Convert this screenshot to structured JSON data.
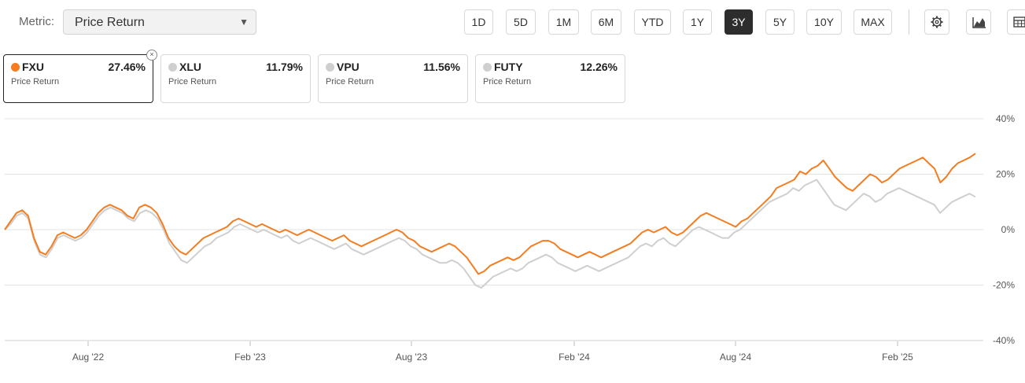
{
  "toolbar": {
    "metric_label": "Metric:",
    "metric_value": "Price Return",
    "periods": [
      "1D",
      "5D",
      "1M",
      "6M",
      "YTD",
      "1Y",
      "3Y",
      "5Y",
      "10Y",
      "MAX"
    ],
    "active_period": "3Y",
    "icons": [
      "gear-icon",
      "mountain-chart-icon",
      "table-icon"
    ]
  },
  "cards": [
    {
      "ticker": "FXU",
      "value": "27.46%",
      "metric": "Price Return",
      "color": "#f57c1f",
      "active": true
    },
    {
      "ticker": "XLU",
      "value": "11.79%",
      "metric": "Price Return",
      "color": "#cfcfcf",
      "active": false
    },
    {
      "ticker": "VPU",
      "value": "11.56%",
      "metric": "Price Return",
      "color": "#cfcfcf",
      "active": false
    },
    {
      "ticker": "FUTY",
      "value": "12.26%",
      "metric": "Price Return",
      "color": "#cfcfcf",
      "active": false
    }
  ],
  "chart_data": {
    "type": "line",
    "y_ticks": [
      "40%",
      "20%",
      "0%",
      "-20%",
      "-40%"
    ],
    "ylim": [
      -40,
      40
    ],
    "x_ticks": [
      "Aug '22",
      "Feb '23",
      "Aug '23",
      "Feb '24",
      "Aug '24",
      "Feb '25"
    ],
    "grid": true,
    "series": [
      {
        "name": "FXU",
        "color": "#f57c1f",
        "values": [
          0,
          3,
          6,
          7,
          5,
          -3,
          -8,
          -9,
          -6,
          -2,
          -1,
          -2,
          -3,
          -2,
          0,
          3,
          6,
          8,
          9,
          8,
          7,
          5,
          4,
          8,
          9,
          8,
          6,
          2,
          -3,
          -6,
          -8,
          -9,
          -7,
          -5,
          -3,
          -2,
          -1,
          0,
          1,
          3,
          4,
          3,
          2,
          1,
          2,
          1,
          0,
          -1,
          0,
          -1,
          -2,
          -1,
          0,
          -1,
          -2,
          -3,
          -4,
          -3,
          -2,
          -4,
          -5,
          -6,
          -5,
          -4,
          -3,
          -2,
          -1,
          0,
          -1,
          -3,
          -4,
          -6,
          -7,
          -8,
          -7,
          -6,
          -5,
          -6,
          -8,
          -10,
          -13,
          -16,
          -15,
          -13,
          -12,
          -11,
          -10,
          -11,
          -10,
          -8,
          -6,
          -5,
          -4,
          -4,
          -5,
          -7,
          -8,
          -9,
          -10,
          -9,
          -8,
          -9,
          -10,
          -9,
          -8,
          -7,
          -6,
          -5,
          -3,
          -1,
          0,
          -1,
          0,
          1,
          -1,
          -2,
          -1,
          1,
          3,
          5,
          6,
          5,
          4,
          3,
          2,
          1,
          3,
          4,
          6,
          8,
          10,
          12,
          15,
          16,
          17,
          18,
          21,
          20,
          22,
          23,
          25,
          22,
          19,
          17,
          15,
          14,
          16,
          18,
          20,
          19,
          17,
          18,
          20,
          22,
          23,
          24,
          25,
          26,
          24,
          22,
          17,
          19,
          22,
          24,
          25,
          26,
          27.46
        ]
      },
      {
        "name": "XLU",
        "color": "#cfcfcf",
        "values": [
          0,
          2,
          5,
          6,
          4,
          -4,
          -9,
          -10,
          -7,
          -3,
          -2,
          -3,
          -4,
          -3,
          -1,
          2,
          5,
          7,
          8,
          7,
          6,
          4,
          3,
          6,
          7,
          6,
          4,
          0,
          -5,
          -8,
          -11,
          -12,
          -10,
          -8,
          -6,
          -5,
          -3,
          -2,
          -1,
          1,
          2,
          1,
          0,
          -1,
          0,
          -1,
          -2,
          -3,
          -2,
          -4,
          -5,
          -4,
          -3,
          -4,
          -5,
          -6,
          -7,
          -6,
          -5,
          -7,
          -8,
          -9,
          -8,
          -7,
          -6,
          -5,
          -4,
          -3,
          -4,
          -6,
          -7,
          -9,
          -10,
          -11,
          -12,
          -12,
          -11,
          -12,
          -14,
          -17,
          -20,
          -21,
          -19,
          -17,
          -16,
          -15,
          -14,
          -15,
          -14,
          -12,
          -11,
          -10,
          -9,
          -10,
          -12,
          -13,
          -14,
          -15,
          -14,
          -13,
          -14,
          -15,
          -14,
          -13,
          -12,
          -11,
          -10,
          -8,
          -6,
          -5,
          -6,
          -4,
          -3,
          -5,
          -6,
          -4,
          -2,
          0,
          1,
          0,
          -1,
          -2,
          -3,
          -3,
          -1,
          0,
          2,
          4,
          6,
          8,
          10,
          11,
          12,
          13,
          15,
          14,
          16,
          17,
          18,
          15,
          12,
          9,
          8,
          7,
          9,
          11,
          13,
          12,
          10,
          11,
          13,
          14,
          15,
          14,
          13,
          12,
          11,
          10,
          9,
          6,
          8,
          10,
          11,
          12,
          13,
          11.79
        ]
      }
    ]
  }
}
